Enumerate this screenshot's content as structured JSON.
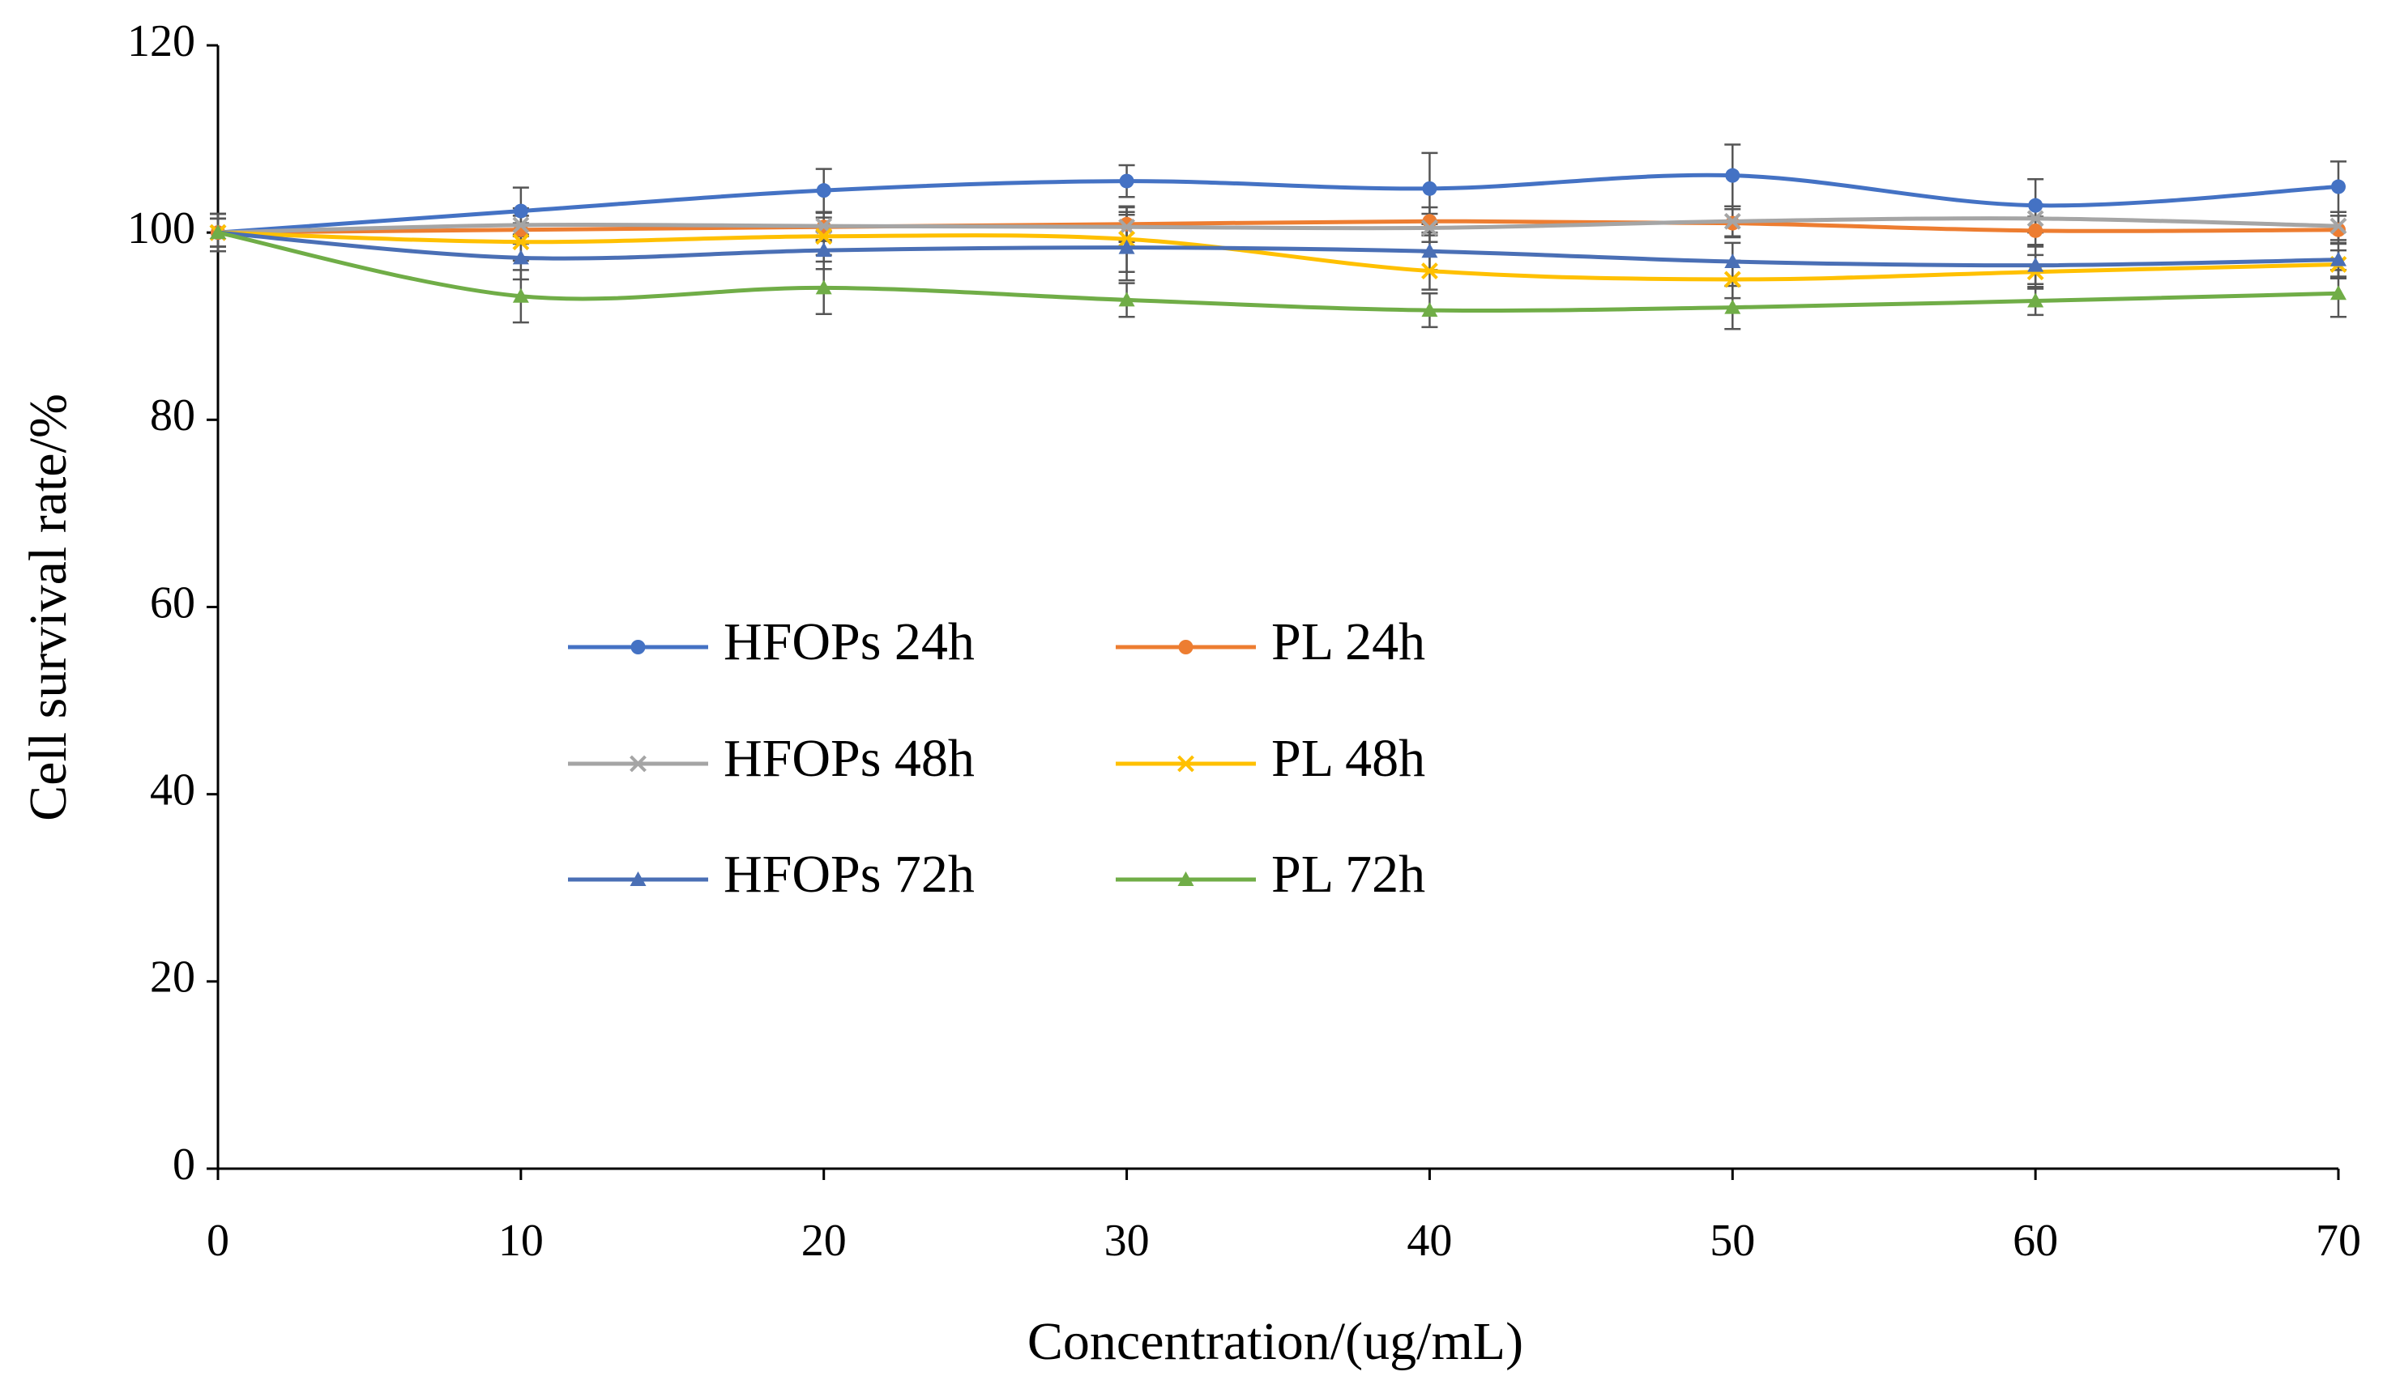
{
  "chart_data": {
    "type": "line",
    "x_label": "Concentration/(ug/mL)",
    "y_label": "Cell survival rate/%",
    "x": [
      0,
      10,
      20,
      30,
      40,
      50,
      60,
      70
    ],
    "xlim": [
      0,
      70
    ],
    "xticks": [
      0,
      10,
      20,
      30,
      40,
      50,
      60,
      70
    ],
    "ylim": [
      0,
      120
    ],
    "yticks": [
      0,
      20,
      40,
      60,
      80,
      100,
      120
    ],
    "smooth": true,
    "series": [
      {
        "name": "HFOPs 24h",
        "color": "#4472c4",
        "marker": "circle",
        "values": [
          100,
          102.3,
          104.5,
          105.5,
          104.7,
          106.1,
          102.9,
          104.9
        ],
        "errors": [
          2,
          2.5,
          2.3,
          1.7,
          3.8,
          3.3,
          2.8,
          2.7
        ]
      },
      {
        "name": "PL 24h",
        "color": "#ed7d31",
        "marker": "circle",
        "values": [
          100,
          100.3,
          100.6,
          100.9,
          101.2,
          101,
          100.2,
          100.3
        ],
        "errors": [
          1.5,
          1.5,
          1.5,
          1.8,
          1.5,
          1.5,
          1.5,
          1.5
        ]
      },
      {
        "name": "HFOPs 48h",
        "color": "#a5a5a5",
        "marker": "x",
        "values": [
          100,
          100.8,
          100.7,
          100.6,
          100.5,
          101.2,
          101.5,
          100.7
        ],
        "errors": [
          1.5,
          1.8,
          1.5,
          1.6,
          1.5,
          1.6,
          1.5,
          1.5
        ]
      },
      {
        "name": "PL 48h",
        "color": "#ffc000",
        "marker": "x",
        "values": [
          100,
          99,
          99.6,
          99.3,
          95.9,
          95,
          95.8,
          96.6
        ],
        "errors": [
          1.5,
          2,
          2,
          3.5,
          2,
          2,
          1.8,
          1.5
        ]
      },
      {
        "name": "HFOPs 72h",
        "color": "#4a6fb5",
        "marker": "triangle",
        "values": [
          100,
          97.3,
          98.1,
          98.4,
          98,
          96.9,
          96.5,
          97.1
        ],
        "errors": [
          2,
          2.3,
          2,
          3.5,
          2,
          2,
          2,
          1.8
        ]
      },
      {
        "name": "PL 72h",
        "color": "#70ad47",
        "marker": "triangle",
        "values": [
          100,
          93.2,
          94.1,
          92.8,
          91.7,
          92,
          92.7,
          93.5
        ],
        "errors": [
          2,
          2.8,
          2.8,
          1.8,
          1.8,
          2.3,
          1.5,
          2.5
        ]
      }
    ]
  }
}
